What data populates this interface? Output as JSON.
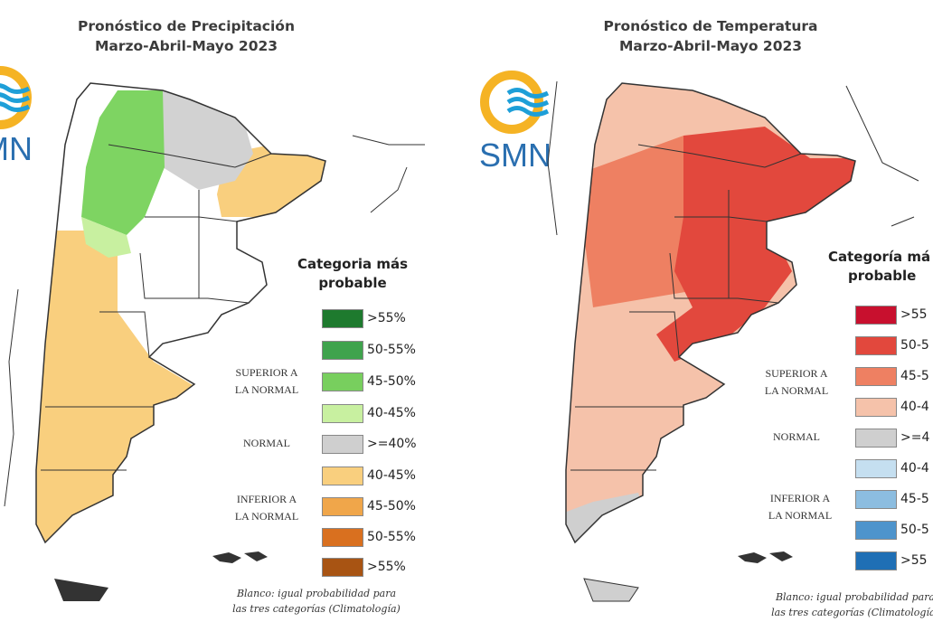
{
  "maps": [
    {
      "title_line1": "Pronóstico de Precipitación",
      "title_line2": "Marzo-Abril-Mayo 2023",
      "logo_text": "SMN",
      "legend_title_line1": "Categoria más",
      "legend_title_line2": "probable",
      "groups": {
        "superior_line1": "SUPERIOR A",
        "superior_line2": "LA NORMAL",
        "normal": "NORMAL",
        "inferior_line1": "INFERIOR A",
        "inferior_line2": "LA NORMAL"
      },
      "legend": [
        {
          "label": ">55%",
          "color": "#1e7a2e"
        },
        {
          "label": "50-55%",
          "color": "#3fa34d"
        },
        {
          "label": "45-50%",
          "color": "#78cf5e"
        },
        {
          "label": "40-45%",
          "color": "#c8f0a0"
        },
        {
          "label": ">=40%",
          "color": "#cfcfcf"
        },
        {
          "label": "40-45%",
          "color": "#f9cf7e"
        },
        {
          "label": "45-50%",
          "color": "#f0a64a"
        },
        {
          "label": "50-55%",
          "color": "#d9701f"
        },
        {
          "label": ">55%",
          "color": "#a85413"
        }
      ],
      "note_line1": "Blanco: igual probabilidad para",
      "note_line2": "las tres categorías (Climatología)"
    },
    {
      "title_line1": "Pronóstico de Temperatura",
      "title_line2": "Marzo-Abril-Mayo 2023",
      "logo_text": "SMN",
      "legend_title_line1": "Categoría má",
      "legend_title_line2": "probable",
      "groups": {
        "superior_line1": "SUPERIOR A",
        "superior_line2": "LA NORMAL",
        "normal": "NORMAL",
        "inferior_line1": "INFERIOR A",
        "inferior_line2": "LA NORMAL"
      },
      "legend": [
        {
          "label": ">55",
          "color": "#c8102e"
        },
        {
          "label": "50-5",
          "color": "#e2483d"
        },
        {
          "label": "45-5",
          "color": "#ee8062"
        },
        {
          "label": "40-4",
          "color": "#f5c2aa"
        },
        {
          "label": ">=4",
          "color": "#cfcfcf"
        },
        {
          "label": "40-4",
          "color": "#c5dff0"
        },
        {
          "label": "45-5",
          "color": "#8cbde0"
        },
        {
          "label": "50-5",
          "color": "#4e94cc"
        },
        {
          "label": ">55",
          "color": "#1f6fb5"
        }
      ],
      "note_line1": "Blanco: igual probabilidad para",
      "note_line2": "las tres categorías (Climatología)"
    }
  ],
  "colors": {
    "logo_ring": "#f5b324",
    "logo_waves": "#1e9fd8",
    "logo_text": "#2a6fb0",
    "border": "#333333"
  }
}
